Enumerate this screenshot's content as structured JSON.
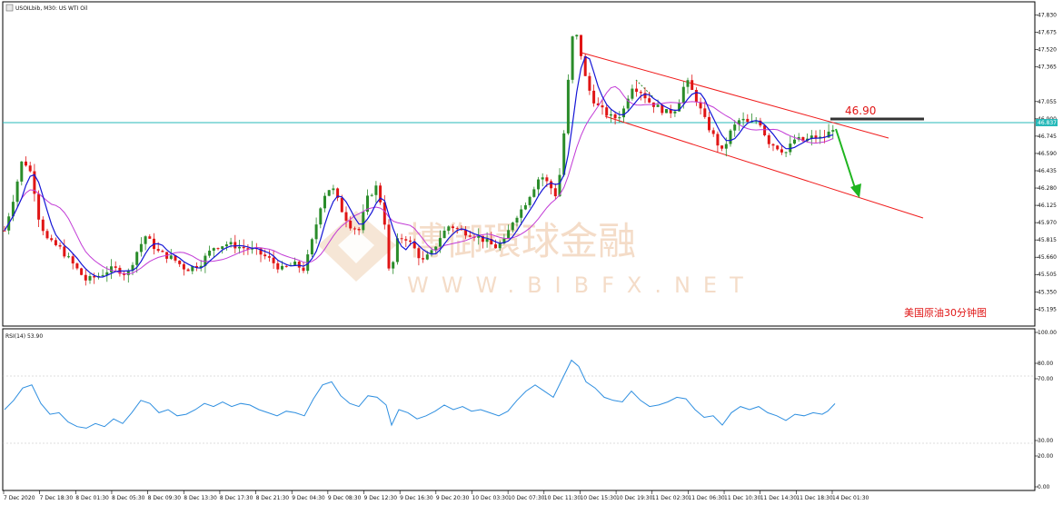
{
  "header": {
    "symbol_label": "USOILbib, M30:  US WTI Oil"
  },
  "annotation": {
    "price_label": "46.90",
    "chart_caption": "美国原油30分钟图"
  },
  "watermark": {
    "cn_text": "博御環球金融",
    "url_text": "WWW.BIBFX.NET"
  },
  "rsi_panel": {
    "label": "RSI(14) 53.90"
  },
  "colors": {
    "bull": "#2a8c2a",
    "bear": "#e01515",
    "ma_fast": "#1515d6",
    "ma_slow": "#c23bd6",
    "rsi_line": "#2f8fe0",
    "channel": "#f01c1c",
    "current_price_line": "#27b9b9",
    "level_line": "#333333",
    "arrow": "#1fb51f",
    "caption": "#e01515",
    "watermark": "#f3d7bf"
  },
  "chart_data": {
    "type": "candlestick",
    "price_axis": {
      "ticks": [
        "47.830",
        "47.675",
        "47.520",
        "47.365",
        "47.055",
        "46.900",
        "46.745",
        "46.590",
        "46.435",
        "46.280",
        "46.125",
        "45.970",
        "45.815",
        "45.660",
        "45.505",
        "45.350",
        "45.195"
      ],
      "ylim": [
        45.1,
        47.9
      ],
      "current_price": "46.837"
    },
    "rsi_axis": {
      "ticks": [
        "100.00",
        "80.00",
        "70.00",
        "30.00",
        "20.00",
        "0.00"
      ],
      "ylim": [
        0,
        100
      ]
    },
    "time_labels": [
      "7 Dec 2020",
      "7 Dec 18:30",
      "8 Dec 01:30",
      "8 Dec 05:30",
      "8 Dec 09:30",
      "8 Dec 13:30",
      "8 Dec 17:30",
      "8 Dec 21:30",
      "9 Dec 04:30",
      "9 Dec 08:30",
      "9 Dec 12:30",
      "9 Dec 16:30",
      "9 Dec 20:30",
      "10 Dec 03:30",
      "10 Dec 07:30",
      "10 Dec 11:30",
      "10 Dec 15:30",
      "10 Dec 19:30",
      "11 Dec 02:30",
      "11 Dec 06:30",
      "11 Dec 10:30",
      "11 Dec 14:30",
      "11 Dec 18:30",
      "14 Dec 01:30"
    ],
    "key_points": [
      {
        "x": 0,
        "y": 45.9
      },
      {
        "x": 10,
        "y": 46.2
      },
      {
        "x": 20,
        "y": 46.55
      },
      {
        "x": 30,
        "y": 46.4
      },
      {
        "x": 38,
        "y": 46.0
      },
      {
        "x": 48,
        "y": 45.8
      },
      {
        "x": 60,
        "y": 45.75
      },
      {
        "x": 75,
        "y": 45.6
      },
      {
        "x": 90,
        "y": 45.45
      },
      {
        "x": 105,
        "y": 45.5
      },
      {
        "x": 115,
        "y": 45.55
      },
      {
        "x": 125,
        "y": 45.55
      },
      {
        "x": 135,
        "y": 45.5
      },
      {
        "x": 145,
        "y": 45.7
      },
      {
        "x": 155,
        "y": 45.85
      },
      {
        "x": 170,
        "y": 45.7
      },
      {
        "x": 185,
        "y": 45.65
      },
      {
        "x": 200,
        "y": 45.55
      },
      {
        "x": 215,
        "y": 45.6
      },
      {
        "x": 230,
        "y": 45.75
      },
      {
        "x": 245,
        "y": 45.78
      },
      {
        "x": 260,
        "y": 45.75
      },
      {
        "x": 275,
        "y": 45.72
      },
      {
        "x": 290,
        "y": 45.65
      },
      {
        "x": 305,
        "y": 45.55
      },
      {
        "x": 318,
        "y": 45.6
      },
      {
        "x": 330,
        "y": 45.55
      },
      {
        "x": 340,
        "y": 45.85
      },
      {
        "x": 350,
        "y": 46.2
      },
      {
        "x": 360,
        "y": 46.3
      },
      {
        "x": 370,
        "y": 46.1
      },
      {
        "x": 380,
        "y": 45.95
      },
      {
        "x": 390,
        "y": 45.9
      },
      {
        "x": 400,
        "y": 46.2
      },
      {
        "x": 410,
        "y": 46.3
      },
      {
        "x": 418,
        "y": 46.0
      },
      {
        "x": 424,
        "y": 45.45
      },
      {
        "x": 432,
        "y": 45.8
      },
      {
        "x": 440,
        "y": 45.85
      },
      {
        "x": 450,
        "y": 45.75
      },
      {
        "x": 460,
        "y": 45.62
      },
      {
        "x": 470,
        "y": 45.7
      },
      {
        "x": 480,
        "y": 45.85
      },
      {
        "x": 490,
        "y": 45.95
      },
      {
        "x": 500,
        "y": 45.9
      },
      {
        "x": 510,
        "y": 45.88
      },
      {
        "x": 520,
        "y": 45.85
      },
      {
        "x": 530,
        "y": 45.8
      },
      {
        "x": 540,
        "y": 45.75
      },
      {
        "x": 550,
        "y": 45.8
      },
      {
        "x": 560,
        "y": 46.0
      },
      {
        "x": 570,
        "y": 46.1
      },
      {
        "x": 580,
        "y": 46.25
      },
      {
        "x": 590,
        "y": 46.4
      },
      {
        "x": 600,
        "y": 46.3
      },
      {
        "x": 608,
        "y": 46.2
      },
      {
        "x": 614,
        "y": 46.6
      },
      {
        "x": 620,
        "y": 47.2
      },
      {
        "x": 626,
        "y": 47.7
      },
      {
        "x": 632,
        "y": 47.6
      },
      {
        "x": 638,
        "y": 47.3
      },
      {
        "x": 646,
        "y": 47.1
      },
      {
        "x": 654,
        "y": 47.0
      },
      {
        "x": 662,
        "y": 46.95
      },
      {
        "x": 670,
        "y": 46.9
      },
      {
        "x": 680,
        "y": 46.95
      },
      {
        "x": 690,
        "y": 47.2
      },
      {
        "x": 700,
        "y": 47.15
      },
      {
        "x": 710,
        "y": 47.05
      },
      {
        "x": 720,
        "y": 47.0
      },
      {
        "x": 730,
        "y": 46.95
      },
      {
        "x": 740,
        "y": 47.0
      },
      {
        "x": 750,
        "y": 47.25
      },
      {
        "x": 760,
        "y": 47.1
      },
      {
        "x": 770,
        "y": 46.9
      },
      {
        "x": 780,
        "y": 46.75
      },
      {
        "x": 790,
        "y": 46.6
      },
      {
        "x": 800,
        "y": 46.8
      },
      {
        "x": 810,
        "y": 46.9
      },
      {
        "x": 820,
        "y": 46.85
      },
      {
        "x": 830,
        "y": 46.9
      },
      {
        "x": 840,
        "y": 46.7
      },
      {
        "x": 850,
        "y": 46.65
      },
      {
        "x": 860,
        "y": 46.6
      },
      {
        "x": 870,
        "y": 46.72
      },
      {
        "x": 880,
        "y": 46.7
      },
      {
        "x": 890,
        "y": 46.74
      },
      {
        "x": 900,
        "y": 46.72
      },
      {
        "x": 908,
        "y": 46.78
      },
      {
        "x": 914,
        "y": 46.85
      }
    ],
    "rsi_points": [
      {
        "x": 0,
        "y": 50
      },
      {
        "x": 10,
        "y": 56
      },
      {
        "x": 20,
        "y": 64
      },
      {
        "x": 30,
        "y": 66
      },
      {
        "x": 40,
        "y": 54
      },
      {
        "x": 50,
        "y": 47
      },
      {
        "x": 60,
        "y": 48
      },
      {
        "x": 70,
        "y": 42
      },
      {
        "x": 80,
        "y": 39
      },
      {
        "x": 90,
        "y": 38
      },
      {
        "x": 100,
        "y": 41
      },
      {
        "x": 110,
        "y": 39
      },
      {
        "x": 120,
        "y": 44
      },
      {
        "x": 130,
        "y": 41
      },
      {
        "x": 140,
        "y": 48
      },
      {
        "x": 150,
        "y": 56
      },
      {
        "x": 160,
        "y": 54
      },
      {
        "x": 170,
        "y": 48
      },
      {
        "x": 180,
        "y": 50
      },
      {
        "x": 190,
        "y": 46
      },
      {
        "x": 200,
        "y": 47
      },
      {
        "x": 210,
        "y": 50
      },
      {
        "x": 220,
        "y": 54
      },
      {
        "x": 230,
        "y": 52
      },
      {
        "x": 240,
        "y": 55
      },
      {
        "x": 250,
        "y": 52
      },
      {
        "x": 260,
        "y": 54
      },
      {
        "x": 270,
        "y": 53
      },
      {
        "x": 280,
        "y": 50
      },
      {
        "x": 290,
        "y": 48
      },
      {
        "x": 300,
        "y": 46
      },
      {
        "x": 310,
        "y": 49
      },
      {
        "x": 320,
        "y": 48
      },
      {
        "x": 330,
        "y": 46
      },
      {
        "x": 340,
        "y": 57
      },
      {
        "x": 350,
        "y": 66
      },
      {
        "x": 360,
        "y": 68
      },
      {
        "x": 370,
        "y": 59
      },
      {
        "x": 380,
        "y": 54
      },
      {
        "x": 390,
        "y": 52
      },
      {
        "x": 400,
        "y": 59
      },
      {
        "x": 410,
        "y": 58
      },
      {
        "x": 420,
        "y": 53
      },
      {
        "x": 426,
        "y": 40
      },
      {
        "x": 434,
        "y": 50
      },
      {
        "x": 444,
        "y": 48
      },
      {
        "x": 454,
        "y": 44
      },
      {
        "x": 464,
        "y": 46
      },
      {
        "x": 474,
        "y": 49
      },
      {
        "x": 484,
        "y": 53
      },
      {
        "x": 494,
        "y": 50
      },
      {
        "x": 504,
        "y": 52
      },
      {
        "x": 514,
        "y": 49
      },
      {
        "x": 524,
        "y": 50
      },
      {
        "x": 534,
        "y": 48
      },
      {
        "x": 544,
        "y": 46
      },
      {
        "x": 554,
        "y": 49
      },
      {
        "x": 564,
        "y": 56
      },
      {
        "x": 574,
        "y": 62
      },
      {
        "x": 584,
        "y": 66
      },
      {
        "x": 594,
        "y": 62
      },
      {
        "x": 604,
        "y": 58
      },
      {
        "x": 614,
        "y": 70
      },
      {
        "x": 624,
        "y": 82
      },
      {
        "x": 632,
        "y": 78
      },
      {
        "x": 640,
        "y": 68
      },
      {
        "x": 650,
        "y": 64
      },
      {
        "x": 660,
        "y": 58
      },
      {
        "x": 670,
        "y": 56
      },
      {
        "x": 680,
        "y": 55
      },
      {
        "x": 690,
        "y": 62
      },
      {
        "x": 700,
        "y": 56
      },
      {
        "x": 710,
        "y": 52
      },
      {
        "x": 720,
        "y": 53
      },
      {
        "x": 730,
        "y": 55
      },
      {
        "x": 740,
        "y": 58
      },
      {
        "x": 750,
        "y": 57
      },
      {
        "x": 760,
        "y": 50
      },
      {
        "x": 770,
        "y": 45
      },
      {
        "x": 780,
        "y": 46
      },
      {
        "x": 790,
        "y": 40
      },
      {
        "x": 800,
        "y": 48
      },
      {
        "x": 810,
        "y": 52
      },
      {
        "x": 820,
        "y": 50
      },
      {
        "x": 830,
        "y": 52
      },
      {
        "x": 840,
        "y": 48
      },
      {
        "x": 850,
        "y": 46
      },
      {
        "x": 860,
        "y": 43
      },
      {
        "x": 870,
        "y": 47
      },
      {
        "x": 880,
        "y": 46
      },
      {
        "x": 890,
        "y": 48
      },
      {
        "x": 900,
        "y": 47
      },
      {
        "x": 906,
        "y": 49
      },
      {
        "x": 914,
        "y": 53.9
      }
    ]
  }
}
